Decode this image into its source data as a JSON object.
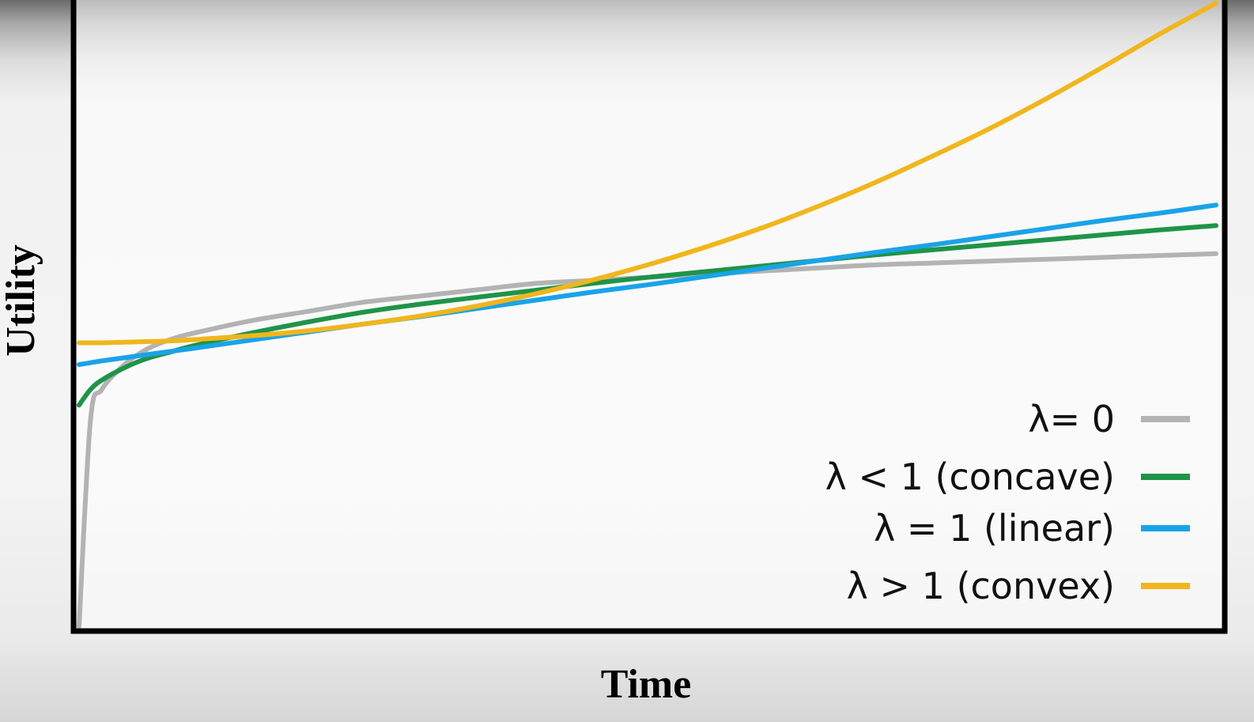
{
  "chart_data": {
    "type": "line",
    "xlabel": "Time",
    "ylabel": "Utility",
    "grid": false,
    "axis_ticks": false,
    "legend_position": "bottom-right",
    "x": [
      0,
      0.01,
      0.02,
      0.04,
      0.06,
      0.08,
      0.1,
      0.15,
      0.2,
      0.25,
      0.3,
      0.35,
      0.4,
      0.45,
      0.5,
      0.55,
      0.6,
      0.65,
      0.7,
      0.75,
      0.8,
      0.85,
      0.9,
      0.95,
      1.0
    ],
    "ylim": [
      0,
      1
    ],
    "series": [
      {
        "name": "λ= 0",
        "color": "#b3b3b3",
        "values": [
          0.0,
          0.33,
          0.38,
          0.42,
          0.445,
          0.46,
          0.47,
          0.49,
          0.505,
          0.52,
          0.53,
          0.54,
          0.55,
          0.555,
          0.56,
          0.565,
          0.57,
          0.575,
          0.58,
          0.583,
          0.586,
          0.589,
          0.592,
          0.595,
          0.598
        ]
      },
      {
        "name": "λ < 1 (concave)",
        "color": "#1f9448",
        "values": [
          0.355,
          0.38,
          0.395,
          0.415,
          0.43,
          0.44,
          0.45,
          0.47,
          0.488,
          0.504,
          0.517,
          0.528,
          0.539,
          0.55,
          0.56,
          0.569,
          0.578,
          0.587,
          0.596,
          0.604,
          0.612,
          0.62,
          0.628,
          0.636,
          0.643
        ]
      },
      {
        "name": "λ = 1 (linear)",
        "color": "#1aa3e8",
        "values": [
          0.42,
          0.423,
          0.426,
          0.431,
          0.436,
          0.441,
          0.446,
          0.459,
          0.472,
          0.485,
          0.497,
          0.51,
          0.523,
          0.536,
          0.548,
          0.561,
          0.574,
          0.587,
          0.6,
          0.612,
          0.625,
          0.638,
          0.651,
          0.663,
          0.676
        ]
      },
      {
        "name": "λ > 1 (convex)",
        "color": "#f0b61c",
        "values": [
          0.455,
          0.455,
          0.455,
          0.456,
          0.457,
          0.458,
          0.46,
          0.466,
          0.474,
          0.485,
          0.498,
          0.514,
          0.533,
          0.555,
          0.58,
          0.608,
          0.639,
          0.674,
          0.712,
          0.754,
          0.798,
          0.846,
          0.897,
          0.95,
          1.0
        ]
      }
    ]
  }
}
